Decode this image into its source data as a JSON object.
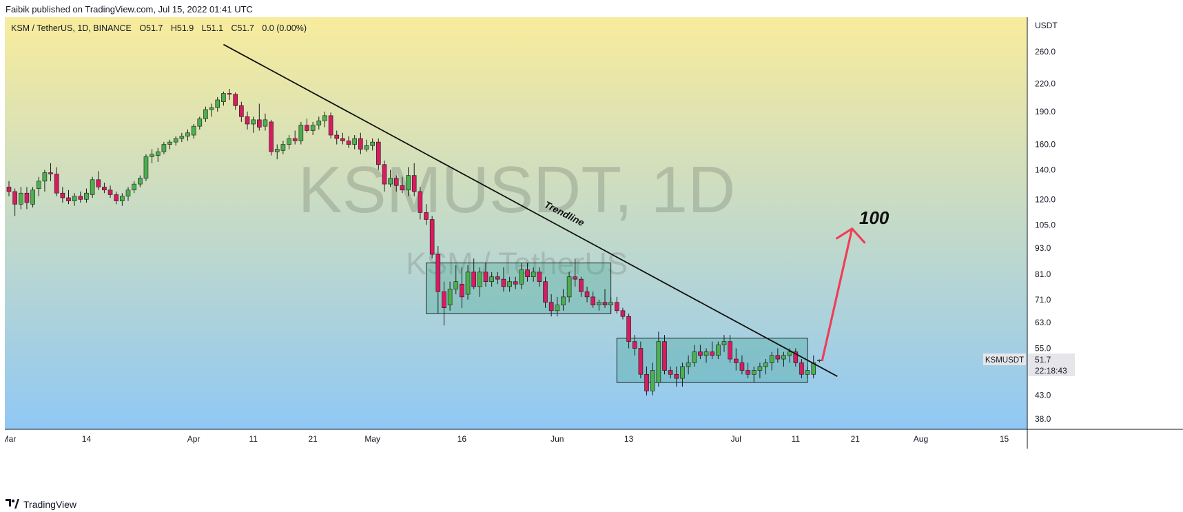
{
  "header": {
    "published": "Faibik published on TradingView.com, Jul 15, 2022 01:41 UTC"
  },
  "legend": {
    "symbol": "KSM / TetherUS, 1D, BINANCE",
    "open_label": "O",
    "open": "51.7",
    "high_label": "H",
    "high": "51.9",
    "low_label": "L",
    "low": "51.1",
    "close_label": "C",
    "close": "51.7",
    "change": "0.0 (0.00%)"
  },
  "watermark": {
    "main": "KSMUSDT, 1D",
    "sub": "KSM / TetherUS"
  },
  "axis": {
    "currency": "USDT",
    "price_ticks": [
      "260.0",
      "220.0",
      "190.0",
      "160.0",
      "140.0",
      "120.0",
      "105.0",
      "93.0",
      "81.0",
      "71.0",
      "63.0",
      "55.0",
      "43.0",
      "38.0"
    ],
    "date_ticks": [
      "Mar",
      "14",
      "Apr",
      "11",
      "21",
      "May",
      "16",
      "Jun",
      "13",
      "Jul",
      "11",
      "21",
      "Aug",
      "15"
    ]
  },
  "price_label": {
    "symbol": "KSMUSDT",
    "price": "51.7",
    "countdown": "22:18:43"
  },
  "annotations": {
    "trendline": "Trendline",
    "target": "100"
  },
  "footer": {
    "brand": "TradingView"
  },
  "colors": {
    "up": "#26a69a",
    "up_fill": "#4caf50",
    "down": "#d81b60",
    "arrow": "#ef3e56",
    "bg_top": "#f8ec9c",
    "bg_bottom": "#90c8f4"
  },
  "chart_data": {
    "type": "candlestick",
    "scale": "log",
    "x_unit": "date",
    "ylim": [
      36,
      300
    ],
    "rectangles": [
      {
        "from": "2022-05-10",
        "to": "2022-06-10",
        "low": 66,
        "high": 86
      },
      {
        "from": "2022-06-11",
        "to": "2022-07-13",
        "low": 46,
        "high": 58
      }
    ],
    "trendline": {
      "from": [
        "2022-04-06",
        270
      ],
      "to": [
        "2022-07-18",
        47.5
      ]
    },
    "target_arrow": {
      "from": [
        "2022-07-15",
        51.7
      ],
      "to": [
        "2022-07-20",
        100
      ]
    },
    "candles": [
      {
        "d": "2022-03-01",
        "o": 128,
        "h": 132,
        "l": 122,
        "c": 125
      },
      {
        "d": "2022-03-02",
        "o": 125,
        "h": 127,
        "l": 110,
        "c": 117
      },
      {
        "d": "2022-03-03",
        "o": 117,
        "h": 128,
        "l": 114,
        "c": 124
      },
      {
        "d": "2022-03-04",
        "o": 124,
        "h": 128,
        "l": 114,
        "c": 118
      },
      {
        "d": "2022-03-05",
        "o": 117,
        "h": 128,
        "l": 115,
        "c": 126
      },
      {
        "d": "2022-03-06",
        "o": 127,
        "h": 135,
        "l": 122,
        "c": 132
      },
      {
        "d": "2022-03-07",
        "o": 132,
        "h": 140,
        "l": 125,
        "c": 138
      },
      {
        "d": "2022-03-08",
        "o": 138,
        "h": 145,
        "l": 132,
        "c": 137
      },
      {
        "d": "2022-03-09",
        "o": 137,
        "h": 142,
        "l": 122,
        "c": 124
      },
      {
        "d": "2022-03-10",
        "o": 124,
        "h": 128,
        "l": 118,
        "c": 121
      },
      {
        "d": "2022-03-11",
        "o": 121,
        "h": 126,
        "l": 117,
        "c": 119
      },
      {
        "d": "2022-03-12",
        "o": 119,
        "h": 124,
        "l": 116,
        "c": 122
      },
      {
        "d": "2022-03-13",
        "o": 122,
        "h": 125,
        "l": 118,
        "c": 120
      },
      {
        "d": "2022-03-14",
        "o": 120,
        "h": 127,
        "l": 118,
        "c": 124
      },
      {
        "d": "2022-03-15",
        "o": 123,
        "h": 135,
        "l": 121,
        "c": 133
      },
      {
        "d": "2022-03-16",
        "o": 133,
        "h": 139,
        "l": 126,
        "c": 128
      },
      {
        "d": "2022-03-17",
        "o": 128,
        "h": 131,
        "l": 124,
        "c": 126
      },
      {
        "d": "2022-03-18",
        "o": 126,
        "h": 129,
        "l": 121,
        "c": 123
      },
      {
        "d": "2022-03-19",
        "o": 123,
        "h": 125,
        "l": 117,
        "c": 119
      },
      {
        "d": "2022-03-20",
        "o": 119,
        "h": 124,
        "l": 116,
        "c": 122
      },
      {
        "d": "2022-03-21",
        "o": 122,
        "h": 128,
        "l": 119,
        "c": 126
      },
      {
        "d": "2022-03-22",
        "o": 126,
        "h": 132,
        "l": 124,
        "c": 130
      },
      {
        "d": "2022-03-23",
        "o": 130,
        "h": 136,
        "l": 128,
        "c": 134
      },
      {
        "d": "2022-03-24",
        "o": 134,
        "h": 152,
        "l": 132,
        "c": 150
      },
      {
        "d": "2022-03-25",
        "o": 150,
        "h": 156,
        "l": 145,
        "c": 152
      },
      {
        "d": "2022-03-26",
        "o": 151,
        "h": 157,
        "l": 146,
        "c": 154
      },
      {
        "d": "2022-03-27",
        "o": 154,
        "h": 162,
        "l": 152,
        "c": 160
      },
      {
        "d": "2022-03-28",
        "o": 160,
        "h": 164,
        "l": 156,
        "c": 162
      },
      {
        "d": "2022-03-29",
        "o": 162,
        "h": 167,
        "l": 159,
        "c": 165
      },
      {
        "d": "2022-03-30",
        "o": 165,
        "h": 170,
        "l": 162,
        "c": 167
      },
      {
        "d": "2022-03-31",
        "o": 167,
        "h": 173,
        "l": 163,
        "c": 170
      },
      {
        "d": "2022-04-01",
        "o": 168,
        "h": 178,
        "l": 165,
        "c": 176
      },
      {
        "d": "2022-04-02",
        "o": 176,
        "h": 185,
        "l": 173,
        "c": 183
      },
      {
        "d": "2022-04-03",
        "o": 183,
        "h": 195,
        "l": 180,
        "c": 192
      },
      {
        "d": "2022-04-04",
        "o": 192,
        "h": 198,
        "l": 185,
        "c": 194
      },
      {
        "d": "2022-04-05",
        "o": 194,
        "h": 205,
        "l": 190,
        "c": 202
      },
      {
        "d": "2022-04-06",
        "o": 200,
        "h": 211,
        "l": 196,
        "c": 209
      },
      {
        "d": "2022-04-07",
        "o": 209,
        "h": 214,
        "l": 202,
        "c": 208
      },
      {
        "d": "2022-04-08",
        "o": 208,
        "h": 210,
        "l": 192,
        "c": 196
      },
      {
        "d": "2022-04-09",
        "o": 196,
        "h": 200,
        "l": 180,
        "c": 185
      },
      {
        "d": "2022-04-10",
        "o": 185,
        "h": 190,
        "l": 173,
        "c": 178
      },
      {
        "d": "2022-04-11",
        "o": 178,
        "h": 185,
        "l": 170,
        "c": 182
      },
      {
        "d": "2022-04-12",
        "o": 182,
        "h": 198,
        "l": 172,
        "c": 175
      },
      {
        "d": "2022-04-13",
        "o": 176,
        "h": 188,
        "l": 172,
        "c": 182
      },
      {
        "d": "2022-04-14",
        "o": 180,
        "h": 182,
        "l": 151,
        "c": 154
      },
      {
        "d": "2022-04-15",
        "o": 154,
        "h": 160,
        "l": 148,
        "c": 156
      },
      {
        "d": "2022-04-16",
        "o": 155,
        "h": 163,
        "l": 152,
        "c": 160
      },
      {
        "d": "2022-04-17",
        "o": 160,
        "h": 168,
        "l": 156,
        "c": 165
      },
      {
        "d": "2022-04-18",
        "o": 165,
        "h": 172,
        "l": 160,
        "c": 163
      },
      {
        "d": "2022-04-19",
        "o": 163,
        "h": 180,
        "l": 160,
        "c": 177
      },
      {
        "d": "2022-04-20",
        "o": 177,
        "h": 183,
        "l": 170,
        "c": 172
      },
      {
        "d": "2022-04-21",
        "o": 172,
        "h": 180,
        "l": 168,
        "c": 177
      },
      {
        "d": "2022-04-22",
        "o": 177,
        "h": 185,
        "l": 173,
        "c": 181
      },
      {
        "d": "2022-04-23",
        "o": 181,
        "h": 190,
        "l": 175,
        "c": 186
      },
      {
        "d": "2022-04-24",
        "o": 186,
        "h": 189,
        "l": 165,
        "c": 168
      },
      {
        "d": "2022-04-25",
        "o": 168,
        "h": 172,
        "l": 160,
        "c": 165
      },
      {
        "d": "2022-04-26",
        "o": 165,
        "h": 170,
        "l": 160,
        "c": 163
      },
      {
        "d": "2022-04-27",
        "o": 163,
        "h": 167,
        "l": 157,
        "c": 160
      },
      {
        "d": "2022-04-28",
        "o": 160,
        "h": 168,
        "l": 156,
        "c": 165
      },
      {
        "d": "2022-04-29",
        "o": 165,
        "h": 170,
        "l": 152,
        "c": 156
      },
      {
        "d": "2022-04-30",
        "o": 156,
        "h": 164,
        "l": 154,
        "c": 159
      },
      {
        "d": "2022-05-01",
        "o": 159,
        "h": 165,
        "l": 155,
        "c": 162
      },
      {
        "d": "2022-05-02",
        "o": 162,
        "h": 165,
        "l": 140,
        "c": 144
      },
      {
        "d": "2022-05-03",
        "o": 144,
        "h": 147,
        "l": 125,
        "c": 130
      },
      {
        "d": "2022-05-04",
        "o": 130,
        "h": 140,
        "l": 128,
        "c": 134
      },
      {
        "d": "2022-05-05",
        "o": 134,
        "h": 136,
        "l": 125,
        "c": 129
      },
      {
        "d": "2022-05-06",
        "o": 129,
        "h": 135,
        "l": 124,
        "c": 126
      },
      {
        "d": "2022-05-07",
        "o": 126,
        "h": 142,
        "l": 122,
        "c": 136
      },
      {
        "d": "2022-05-08",
        "o": 136,
        "h": 145,
        "l": 122,
        "c": 125
      },
      {
        "d": "2022-05-09",
        "o": 125,
        "h": 128,
        "l": 108,
        "c": 112
      },
      {
        "d": "2022-05-10",
        "o": 112,
        "h": 117,
        "l": 105,
        "c": 108
      },
      {
        "d": "2022-05-11",
        "o": 108,
        "h": 110,
        "l": 88,
        "c": 90
      },
      {
        "d": "2022-05-12",
        "o": 90,
        "h": 94,
        "l": 66,
        "c": 74
      },
      {
        "d": "2022-05-13",
        "o": 74,
        "h": 78,
        "l": 62,
        "c": 68
      },
      {
        "d": "2022-05-14",
        "o": 69,
        "h": 78,
        "l": 67,
        "c": 75
      },
      {
        "d": "2022-05-15",
        "o": 75,
        "h": 85,
        "l": 73,
        "c": 78
      },
      {
        "d": "2022-05-16",
        "o": 77,
        "h": 84,
        "l": 68,
        "c": 72
      },
      {
        "d": "2022-05-17",
        "o": 73,
        "h": 85,
        "l": 71,
        "c": 82
      },
      {
        "d": "2022-05-18",
        "o": 82,
        "h": 88,
        "l": 75,
        "c": 76
      },
      {
        "d": "2022-05-19",
        "o": 76,
        "h": 84,
        "l": 72,
        "c": 82
      },
      {
        "d": "2022-05-20",
        "o": 82,
        "h": 86,
        "l": 76,
        "c": 78
      },
      {
        "d": "2022-05-21",
        "o": 78,
        "h": 82,
        "l": 76,
        "c": 80
      },
      {
        "d": "2022-05-22",
        "o": 80,
        "h": 82,
        "l": 77,
        "c": 79
      },
      {
        "d": "2022-05-23",
        "o": 79,
        "h": 84,
        "l": 74,
        "c": 76
      },
      {
        "d": "2022-05-24",
        "o": 76,
        "h": 80,
        "l": 74,
        "c": 78
      },
      {
        "d": "2022-05-25",
        "o": 78,
        "h": 80,
        "l": 75,
        "c": 77
      },
      {
        "d": "2022-05-26",
        "o": 77,
        "h": 86,
        "l": 75,
        "c": 83
      },
      {
        "d": "2022-05-27",
        "o": 83,
        "h": 86,
        "l": 78,
        "c": 80
      },
      {
        "d": "2022-05-28",
        "o": 80,
        "h": 84,
        "l": 78,
        "c": 82
      },
      {
        "d": "2022-05-29",
        "o": 82,
        "h": 84,
        "l": 76,
        "c": 78
      },
      {
        "d": "2022-05-30",
        "o": 78,
        "h": 80,
        "l": 68,
        "c": 70
      },
      {
        "d": "2022-05-31",
        "o": 70,
        "h": 73,
        "l": 65,
        "c": 67
      },
      {
        "d": "2022-06-01",
        "o": 67,
        "h": 72,
        "l": 65,
        "c": 69
      },
      {
        "d": "2022-06-02",
        "o": 69,
        "h": 75,
        "l": 67,
        "c": 72
      },
      {
        "d": "2022-06-03",
        "o": 72,
        "h": 82,
        "l": 70,
        "c": 80
      },
      {
        "d": "2022-06-04",
        "o": 80,
        "h": 88,
        "l": 76,
        "c": 79
      },
      {
        "d": "2022-06-05",
        "o": 79,
        "h": 80,
        "l": 72,
        "c": 74
      },
      {
        "d": "2022-06-06",
        "o": 74,
        "h": 76,
        "l": 70,
        "c": 72
      },
      {
        "d": "2022-06-07",
        "o": 72,
        "h": 74,
        "l": 68,
        "c": 69
      },
      {
        "d": "2022-06-08",
        "o": 69,
        "h": 71,
        "l": 67,
        "c": 70
      },
      {
        "d": "2022-06-09",
        "o": 70,
        "h": 75,
        "l": 68,
        "c": 69
      },
      {
        "d": "2022-06-10",
        "o": 69,
        "h": 72,
        "l": 66,
        "c": 70
      },
      {
        "d": "2022-06-11",
        "o": 70,
        "h": 72,
        "l": 66,
        "c": 67
      },
      {
        "d": "2022-06-12",
        "o": 67,
        "h": 68,
        "l": 64,
        "c": 65
      },
      {
        "d": "2022-06-13",
        "o": 65,
        "h": 66,
        "l": 55,
        "c": 57
      },
      {
        "d": "2022-06-14",
        "o": 57,
        "h": 59,
        "l": 53,
        "c": 55
      },
      {
        "d": "2022-06-15",
        "o": 55,
        "h": 57,
        "l": 47,
        "c": 48
      },
      {
        "d": "2022-06-16",
        "o": 48,
        "h": 50,
        "l": 43,
        "c": 44
      },
      {
        "d": "2022-06-17",
        "o": 44,
        "h": 51,
        "l": 43,
        "c": 49
      },
      {
        "d": "2022-06-18",
        "o": 46,
        "h": 60,
        "l": 45,
        "c": 57
      },
      {
        "d": "2022-06-19",
        "o": 57,
        "h": 59,
        "l": 48,
        "c": 49
      },
      {
        "d": "2022-06-20",
        "o": 49,
        "h": 50,
        "l": 47,
        "c": 48
      },
      {
        "d": "2022-06-21",
        "o": 48,
        "h": 50,
        "l": 45,
        "c": 47
      },
      {
        "d": "2022-06-22",
        "o": 47,
        "h": 51,
        "l": 45,
        "c": 50
      },
      {
        "d": "2022-06-23",
        "o": 50,
        "h": 53,
        "l": 48,
        "c": 51
      },
      {
        "d": "2022-06-24",
        "o": 51,
        "h": 56,
        "l": 50,
        "c": 54
      },
      {
        "d": "2022-06-25",
        "o": 54,
        "h": 56,
        "l": 52,
        "c": 53
      },
      {
        "d": "2022-06-26",
        "o": 53,
        "h": 55,
        "l": 51,
        "c": 54
      },
      {
        "d": "2022-06-27",
        "o": 54,
        "h": 57,
        "l": 52,
        "c": 53
      },
      {
        "d": "2022-06-28",
        "o": 53,
        "h": 57,
        "l": 52,
        "c": 56
      },
      {
        "d": "2022-06-29",
        "o": 56,
        "h": 59,
        "l": 54,
        "c": 57
      },
      {
        "d": "2022-06-30",
        "o": 57,
        "h": 59,
        "l": 51,
        "c": 52
      },
      {
        "d": "2022-07-01",
        "o": 52,
        "h": 55,
        "l": 49,
        "c": 51
      },
      {
        "d": "2022-07-02",
        "o": 51,
        "h": 53,
        "l": 48,
        "c": 49
      },
      {
        "d": "2022-07-03",
        "o": 49,
        "h": 51,
        "l": 47,
        "c": 48
      },
      {
        "d": "2022-07-04",
        "o": 48,
        "h": 50,
        "l": 46,
        "c": 49
      },
      {
        "d": "2022-07-05",
        "o": 49,
        "h": 51,
        "l": 47,
        "c": 50
      },
      {
        "d": "2022-07-06",
        "o": 50,
        "h": 52,
        "l": 48,
        "c": 51
      },
      {
        "d": "2022-07-07",
        "o": 51,
        "h": 54,
        "l": 49,
        "c": 53
      },
      {
        "d": "2022-07-08",
        "o": 53,
        "h": 55,
        "l": 51,
        "c": 52
      },
      {
        "d": "2022-07-09",
        "o": 52,
        "h": 54,
        "l": 50,
        "c": 53
      },
      {
        "d": "2022-07-10",
        "o": 53,
        "h": 55,
        "l": 51,
        "c": 54
      },
      {
        "d": "2022-07-11",
        "o": 54,
        "h": 55,
        "l": 50,
        "c": 51
      },
      {
        "d": "2022-07-12",
        "o": 51,
        "h": 52,
        "l": 47,
        "c": 48
      },
      {
        "d": "2022-07-13",
        "o": 48,
        "h": 50,
        "l": 47,
        "c": 49
      },
      {
        "d": "2022-07-14",
        "o": 48,
        "h": 53,
        "l": 47,
        "c": 51
      },
      {
        "d": "2022-07-15",
        "o": 51.7,
        "h": 51.9,
        "l": 51.1,
        "c": 51.7
      }
    ]
  }
}
